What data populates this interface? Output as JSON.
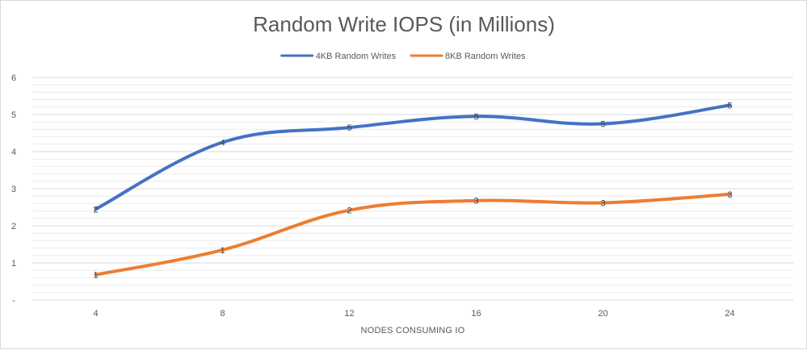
{
  "chart_data": {
    "type": "line",
    "title": "Random Write IOPS (in Millions)",
    "xlabel": "NODES CONSUMING IO",
    "ylabel": "",
    "categories": [
      "4",
      "8",
      "12",
      "16",
      "20",
      "24"
    ],
    "y_tick_labels": [
      "-",
      "1",
      "2",
      "3",
      "4",
      "5",
      "6"
    ],
    "ylim": [
      0,
      6
    ],
    "grid": true,
    "legend_position": "top",
    "series": [
      {
        "name": "4KB Random Writes",
        "color": "#4472c4",
        "values": [
          2.45,
          4.25,
          4.65,
          4.95,
          4.75,
          5.25
        ],
        "data_labels": [
          "2",
          "4",
          "5",
          "5",
          "5",
          "5"
        ]
      },
      {
        "name": "8KB Random Writes",
        "color": "#ed7d31",
        "values": [
          0.68,
          1.35,
          2.42,
          2.68,
          2.62,
          2.85
        ],
        "data_labels": [
          "1",
          "1",
          "2",
          "3",
          "3",
          "3"
        ]
      }
    ]
  }
}
